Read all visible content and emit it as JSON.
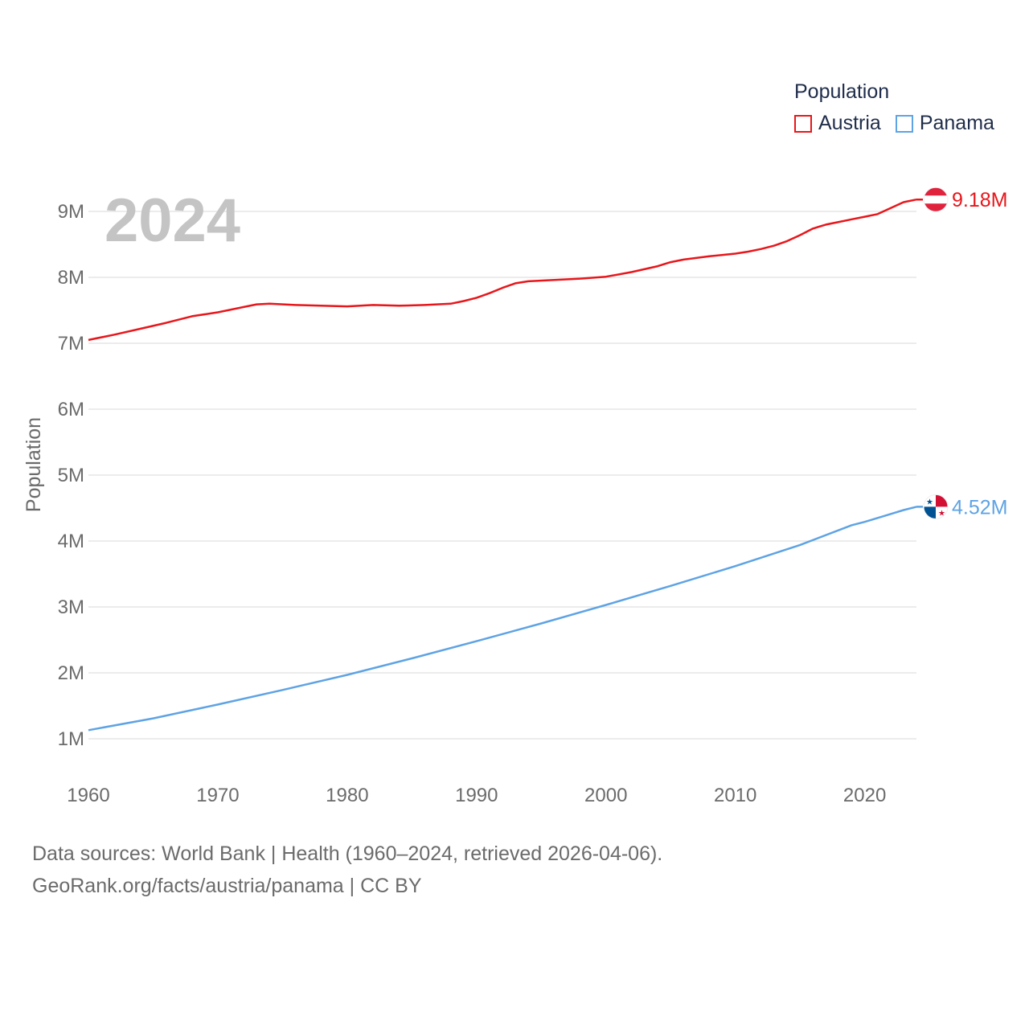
{
  "legend": {
    "title": "Population",
    "items": [
      {
        "label": "Austria",
        "color": "#e8161b"
      },
      {
        "label": "Panama",
        "color": "#5ea3e4"
      }
    ]
  },
  "year_label": "2024",
  "footer": {
    "line1": "Data sources: World Bank | Health (1960–2024, retrieved 2026-04-06).",
    "line2": "GeoRank.org/facts/austria/panama | CC BY"
  },
  "chart_data": {
    "type": "line",
    "title": "",
    "xlabel": "",
    "ylabel": "Population",
    "xlim": [
      1960,
      2024
    ],
    "ylim": [
      0.5,
      9.5
    ],
    "x_ticks": [
      1960,
      1970,
      1980,
      1990,
      2000,
      2010,
      2020
    ],
    "x_tick_labels": [
      "1960",
      "1970",
      "1980",
      "1990",
      "2000",
      "2010",
      "2020"
    ],
    "y_ticks": [
      1,
      2,
      3,
      4,
      5,
      6,
      7,
      8,
      9
    ],
    "y_tick_labels": [
      "1M",
      "2M",
      "3M",
      "4M",
      "5M",
      "6M",
      "7M",
      "8M",
      "9M"
    ],
    "series": [
      {
        "name": "Austria",
        "color": "#e8161b",
        "end_label": "9.18M",
        "flag": "austria",
        "points": [
          [
            1960,
            7.05
          ],
          [
            1962,
            7.13
          ],
          [
            1964,
            7.22
          ],
          [
            1966,
            7.31
          ],
          [
            1968,
            7.41
          ],
          [
            1970,
            7.47
          ],
          [
            1972,
            7.55
          ],
          [
            1973,
            7.59
          ],
          [
            1974,
            7.6
          ],
          [
            1976,
            7.58
          ],
          [
            1978,
            7.57
          ],
          [
            1980,
            7.56
          ],
          [
            1982,
            7.58
          ],
          [
            1984,
            7.57
          ],
          [
            1986,
            7.58
          ],
          [
            1988,
            7.6
          ],
          [
            1989,
            7.64
          ],
          [
            1990,
            7.69
          ],
          [
            1991,
            7.76
          ],
          [
            1992,
            7.84
          ],
          [
            1993,
            7.91
          ],
          [
            1994,
            7.94
          ],
          [
            1996,
            7.96
          ],
          [
            1998,
            7.98
          ],
          [
            2000,
            8.01
          ],
          [
            2002,
            8.08
          ],
          [
            2004,
            8.17
          ],
          [
            2005,
            8.23
          ],
          [
            2006,
            8.27
          ],
          [
            2008,
            8.32
          ],
          [
            2010,
            8.36
          ],
          [
            2011,
            8.39
          ],
          [
            2012,
            8.43
          ],
          [
            2013,
            8.48
          ],
          [
            2014,
            8.55
          ],
          [
            2015,
            8.64
          ],
          [
            2016,
            8.74
          ],
          [
            2017,
            8.8
          ],
          [
            2018,
            8.84
          ],
          [
            2019,
            8.88
          ],
          [
            2020,
            8.92
          ],
          [
            2021,
            8.96
          ],
          [
            2022,
            9.05
          ],
          [
            2023,
            9.14
          ],
          [
            2024,
            9.18
          ]
        ]
      },
      {
        "name": "Panama",
        "color": "#5ea3e4",
        "end_label": "4.52M",
        "flag": "panama",
        "points": [
          [
            1960,
            1.13
          ],
          [
            1965,
            1.31
          ],
          [
            1970,
            1.52
          ],
          [
            1975,
            1.74
          ],
          [
            1980,
            1.97
          ],
          [
            1985,
            2.22
          ],
          [
            1990,
            2.48
          ],
          [
            1995,
            2.75
          ],
          [
            2000,
            3.03
          ],
          [
            2005,
            3.32
          ],
          [
            2010,
            3.62
          ],
          [
            2015,
            3.94
          ],
          [
            2019,
            4.24
          ],
          [
            2020,
            4.29
          ],
          [
            2021,
            4.35
          ],
          [
            2022,
            4.41
          ],
          [
            2023,
            4.47
          ],
          [
            2024,
            4.52
          ]
        ]
      }
    ]
  }
}
